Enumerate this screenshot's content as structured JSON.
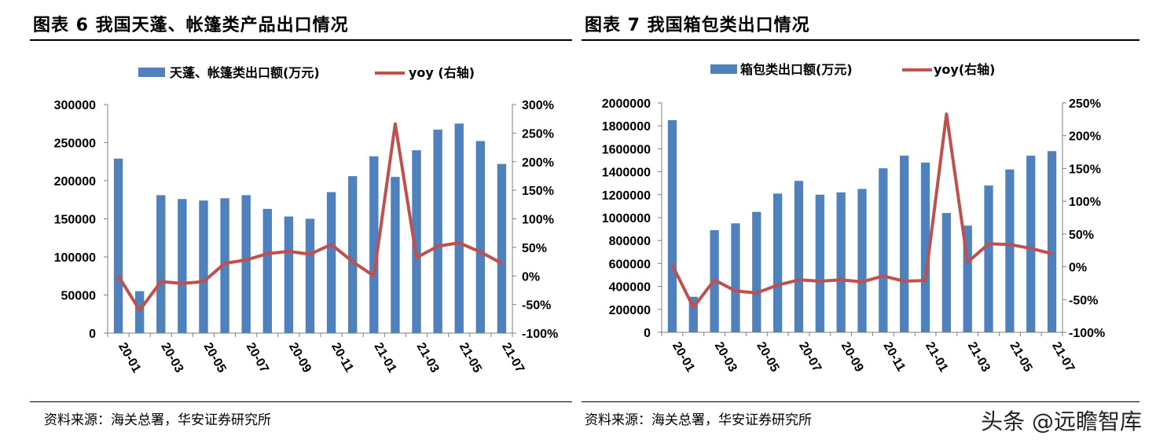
{
  "colors": {
    "bar": "#4F81BD",
    "line": "#C0504D",
    "axis": "#7F7F7F"
  },
  "watermark": "头条 @远瞻智库",
  "chart_data": [
    {
      "type": "bar",
      "title": "图表 6  我国天蓬、帐篷类产品出口情况",
      "source": "资料来源：海关总署，华安证券研究所",
      "legend_placement": "top",
      "categories": [
        "20-01",
        "20-02",
        "20-03",
        "20-04",
        "20-05",
        "20-06",
        "20-07",
        "20-08",
        "20-09",
        "20-10",
        "20-11",
        "20-12",
        "21-01",
        "21-02",
        "21-03",
        "21-04",
        "21-05",
        "21-06",
        "21-07"
      ],
      "x_tick_labels": [
        "20-01",
        "20-03",
        "20-05",
        "20-07",
        "20-09",
        "20-11",
        "21-01",
        "21-03",
        "21-05",
        "21-07"
      ],
      "series": [
        {
          "name": "天蓬、帐篷类出口额(万元)",
          "type": "bar",
          "axis": "left",
          "values": [
            229000,
            55000,
            181000,
            176000,
            174000,
            177000,
            181000,
            163000,
            153000,
            150000,
            185000,
            206000,
            232000,
            205000,
            240000,
            267000,
            275000,
            252000,
            222000
          ]
        },
        {
          "name": "yoy (右轴)",
          "type": "line",
          "axis": "right",
          "values": [
            0,
            -60,
            -10,
            -13,
            -10,
            22,
            28,
            39,
            43,
            38,
            55,
            25,
            0,
            266,
            32,
            52,
            58,
            42,
            22
          ]
        }
      ],
      "y_left": {
        "min": 0,
        "max": 300000,
        "step": 50000,
        "ticks": [
          "0",
          "50000",
          "100000",
          "150000",
          "200000",
          "250000",
          "300000"
        ]
      },
      "y_right": {
        "min": -100,
        "max": 300,
        "step": 50,
        "ticks": [
          "-100%",
          "-50%",
          "0%",
          "50%",
          "100%",
          "150%",
          "200%",
          "250%",
          "300%"
        ]
      }
    },
    {
      "type": "bar",
      "title": "图表 7  我国箱包类出口情况",
      "source": "资料来源：海关总署，华安证券研究所",
      "legend_placement": "top",
      "categories": [
        "20-01",
        "20-02",
        "20-03",
        "20-04",
        "20-05",
        "20-06",
        "20-07",
        "20-08",
        "20-09",
        "20-10",
        "20-11",
        "20-12",
        "21-01",
        "21-02",
        "21-03",
        "21-04",
        "21-05",
        "21-06",
        "21-07"
      ],
      "x_tick_labels": [
        "20-01",
        "20-03",
        "20-05",
        "20-07",
        "20-09",
        "20-11",
        "21-01",
        "21-03",
        "21-05",
        "21-07"
      ],
      "series": [
        {
          "name": "箱包类出口额(万元)",
          "type": "bar",
          "axis": "left",
          "values": [
            1850000,
            310000,
            890000,
            950000,
            1050000,
            1210000,
            1320000,
            1200000,
            1220000,
            1250000,
            1430000,
            1540000,
            1480000,
            1040000,
            930000,
            1280000,
            1420000,
            1540000,
            1580000
          ]
        },
        {
          "name": "yoy(右轴)",
          "type": "line",
          "axis": "right",
          "values": [
            3,
            -62,
            -20,
            -37,
            -40,
            -28,
            -20,
            -22,
            -20,
            -23,
            -14,
            -22,
            -21,
            233,
            7,
            35,
            34,
            28,
            20
          ]
        }
      ],
      "y_left": {
        "min": 0,
        "max": 2000000,
        "step": 200000,
        "ticks": [
          "0",
          "200000",
          "400000",
          "600000",
          "800000",
          "1000000",
          "1200000",
          "1400000",
          "1600000",
          "1800000",
          "2000000"
        ]
      },
      "y_right": {
        "min": -100,
        "max": 250,
        "step": 50,
        "ticks": [
          "-100%",
          "-50%",
          "0%",
          "50%",
          "100%",
          "150%",
          "200%",
          "250%"
        ]
      }
    }
  ]
}
